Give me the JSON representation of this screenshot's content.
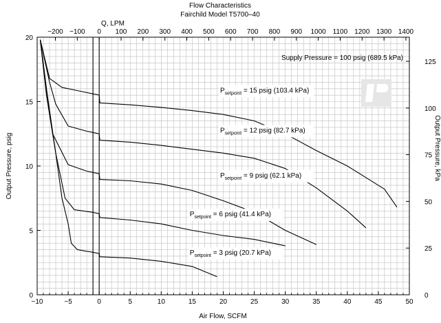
{
  "chart_data": {
    "type": "line",
    "title": "Flow Characteristics",
    "subtitle": "Fairchild Model T5700–40",
    "xlabel": "Air Flow, SCFM",
    "ylabel": "Output Pressure, psig",
    "x2label": "Q, LPM",
    "y2label": "Output Pressure, kPa",
    "xlim": [
      -10,
      50
    ],
    "ylim": [
      0,
      20
    ],
    "x2lim": [
      -283.2,
      1415.8
    ],
    "y2lim": [
      0,
      137.9
    ],
    "x_ticks": [
      -10,
      -5,
      0,
      5,
      10,
      15,
      20,
      25,
      30,
      35,
      40,
      45,
      50
    ],
    "y_ticks": [
      0,
      5,
      10,
      15,
      20
    ],
    "x2_ticks": [
      -200,
      -100,
      0,
      100,
      200,
      300,
      400,
      500,
      600,
      700,
      800,
      900,
      1000,
      1100,
      1200,
      1300,
      1400
    ],
    "y2_ticks": [
      0,
      25,
      50,
      75,
      100,
      125
    ],
    "grid": true,
    "annotation": "Supply Pressure = 100 psig (689.5 kPa)",
    "series": [
      {
        "label_main": "P",
        "label_sub": "setpoint",
        "label_rest": " = 15 psig (103.4 kPa)",
        "label_at": [
          19.5,
          15.7
        ],
        "points": [
          [
            -9.5,
            19.8
          ],
          [
            -8.0,
            16.8
          ],
          [
            -6.0,
            16.1
          ],
          [
            -3.0,
            15.8
          ],
          [
            -1.0,
            15.6
          ],
          [
            0,
            15.5
          ],
          [
            0.1,
            14.9
          ],
          [
            5,
            14.75
          ],
          [
            10,
            14.55
          ],
          [
            15,
            14.3
          ],
          [
            20,
            14.0
          ],
          [
            25,
            13.5
          ],
          [
            30,
            12.5
          ],
          [
            35,
            11.2
          ],
          [
            40,
            10.0
          ],
          [
            43,
            9.1
          ],
          [
            46,
            8.2
          ],
          [
            48,
            6.8
          ]
        ]
      },
      {
        "label_main": "P",
        "label_sub": "setpoint",
        "label_rest": " = 12 psig (82.7 kPa)",
        "label_at": [
          19.5,
          12.6
        ],
        "points": [
          [
            -9.5,
            19.8
          ],
          [
            -8.0,
            16.5
          ],
          [
            -7.0,
            14.8
          ],
          [
            -5.0,
            13.1
          ],
          [
            -2.0,
            12.7
          ],
          [
            0,
            12.5
          ],
          [
            0.1,
            12.0
          ],
          [
            5,
            11.85
          ],
          [
            10,
            11.6
          ],
          [
            15,
            11.3
          ],
          [
            20,
            11.0
          ],
          [
            25,
            10.6
          ],
          [
            30,
            9.8
          ],
          [
            35,
            8.3
          ],
          [
            40,
            6.5
          ],
          [
            43,
            5.2
          ]
        ]
      },
      {
        "label_main": "P",
        "label_sub": "setpoint",
        "label_rest": " = 9 psig (62.1 kPa)",
        "label_at": [
          19.5,
          9.1
        ],
        "points": [
          [
            -9.5,
            19.8
          ],
          [
            -8.5,
            16.0
          ],
          [
            -7.5,
            12.5
          ],
          [
            -5.0,
            10.1
          ],
          [
            -2.0,
            9.6
          ],
          [
            0,
            9.4
          ],
          [
            0.1,
            8.95
          ],
          [
            5,
            8.85
          ],
          [
            10,
            8.6
          ],
          [
            15,
            8.1
          ],
          [
            20,
            7.3
          ],
          [
            25,
            6.4
          ],
          [
            30,
            5.0
          ],
          [
            35,
            3.9
          ]
        ]
      },
      {
        "label_main": "P",
        "label_sub": "setpoint",
        "label_rest": " = 6 psig (41.4 kPa)",
        "label_at": [
          14.6,
          6.1
        ],
        "points": [
          [
            -9.5,
            19.8
          ],
          [
            -8.5,
            15.5
          ],
          [
            -7.0,
            11.0
          ],
          [
            -5.5,
            7.5
          ],
          [
            -4.0,
            6.6
          ],
          [
            -1.0,
            6.4
          ],
          [
            0,
            6.3
          ],
          [
            0.1,
            6.0
          ],
          [
            5,
            5.8
          ],
          [
            10,
            5.5
          ],
          [
            15,
            5.0
          ],
          [
            20,
            4.6
          ],
          [
            25,
            4.3
          ],
          [
            30,
            3.8
          ]
        ]
      },
      {
        "label_main": "P",
        "label_sub": "setpoint",
        "label_rest": " = 3 psig (20.7 kPa)",
        "label_at": [
          14.6,
          3.1
        ],
        "points": [
          [
            -9.5,
            19.8
          ],
          [
            -8.5,
            16.0
          ],
          [
            -7.0,
            11.0
          ],
          [
            -6.0,
            7.5
          ],
          [
            -5.0,
            5.5
          ],
          [
            -4.5,
            4.0
          ],
          [
            -3.5,
            3.5
          ],
          [
            -1.0,
            3.3
          ],
          [
            0,
            3.2
          ],
          [
            0.1,
            2.95
          ],
          [
            5,
            2.85
          ],
          [
            10,
            2.6
          ],
          [
            15,
            2.2
          ],
          [
            19,
            1.4
          ]
        ]
      }
    ]
  }
}
